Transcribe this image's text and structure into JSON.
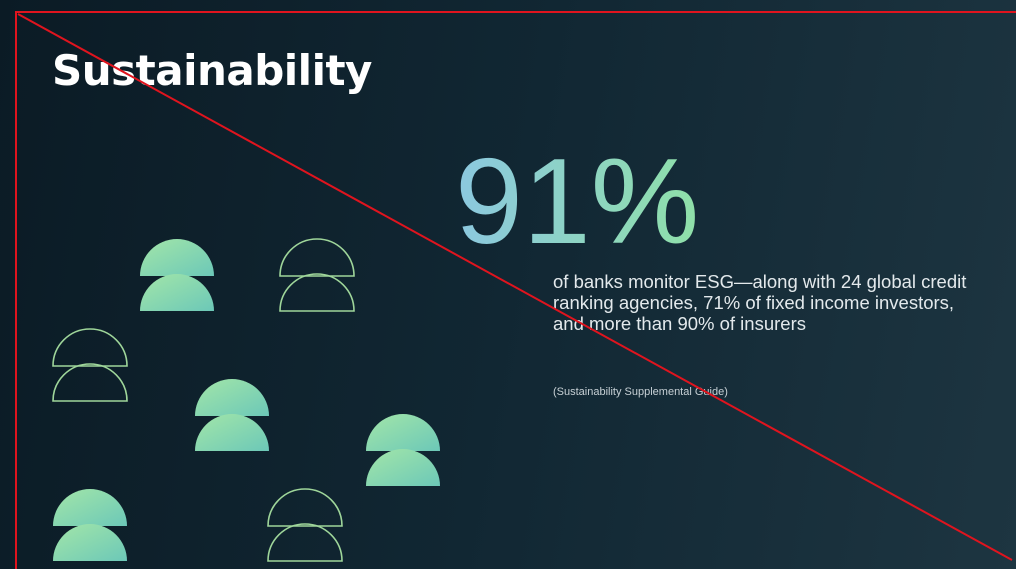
{
  "title": "Sustainability",
  "stat": {
    "value": "91%",
    "description": "of banks monitor ESG—along with 24 global credit ranking agencies, 71% of fixed income investors, and more than 90% of insurers",
    "source": "(Sustainability Supplemental Guide)"
  }
}
